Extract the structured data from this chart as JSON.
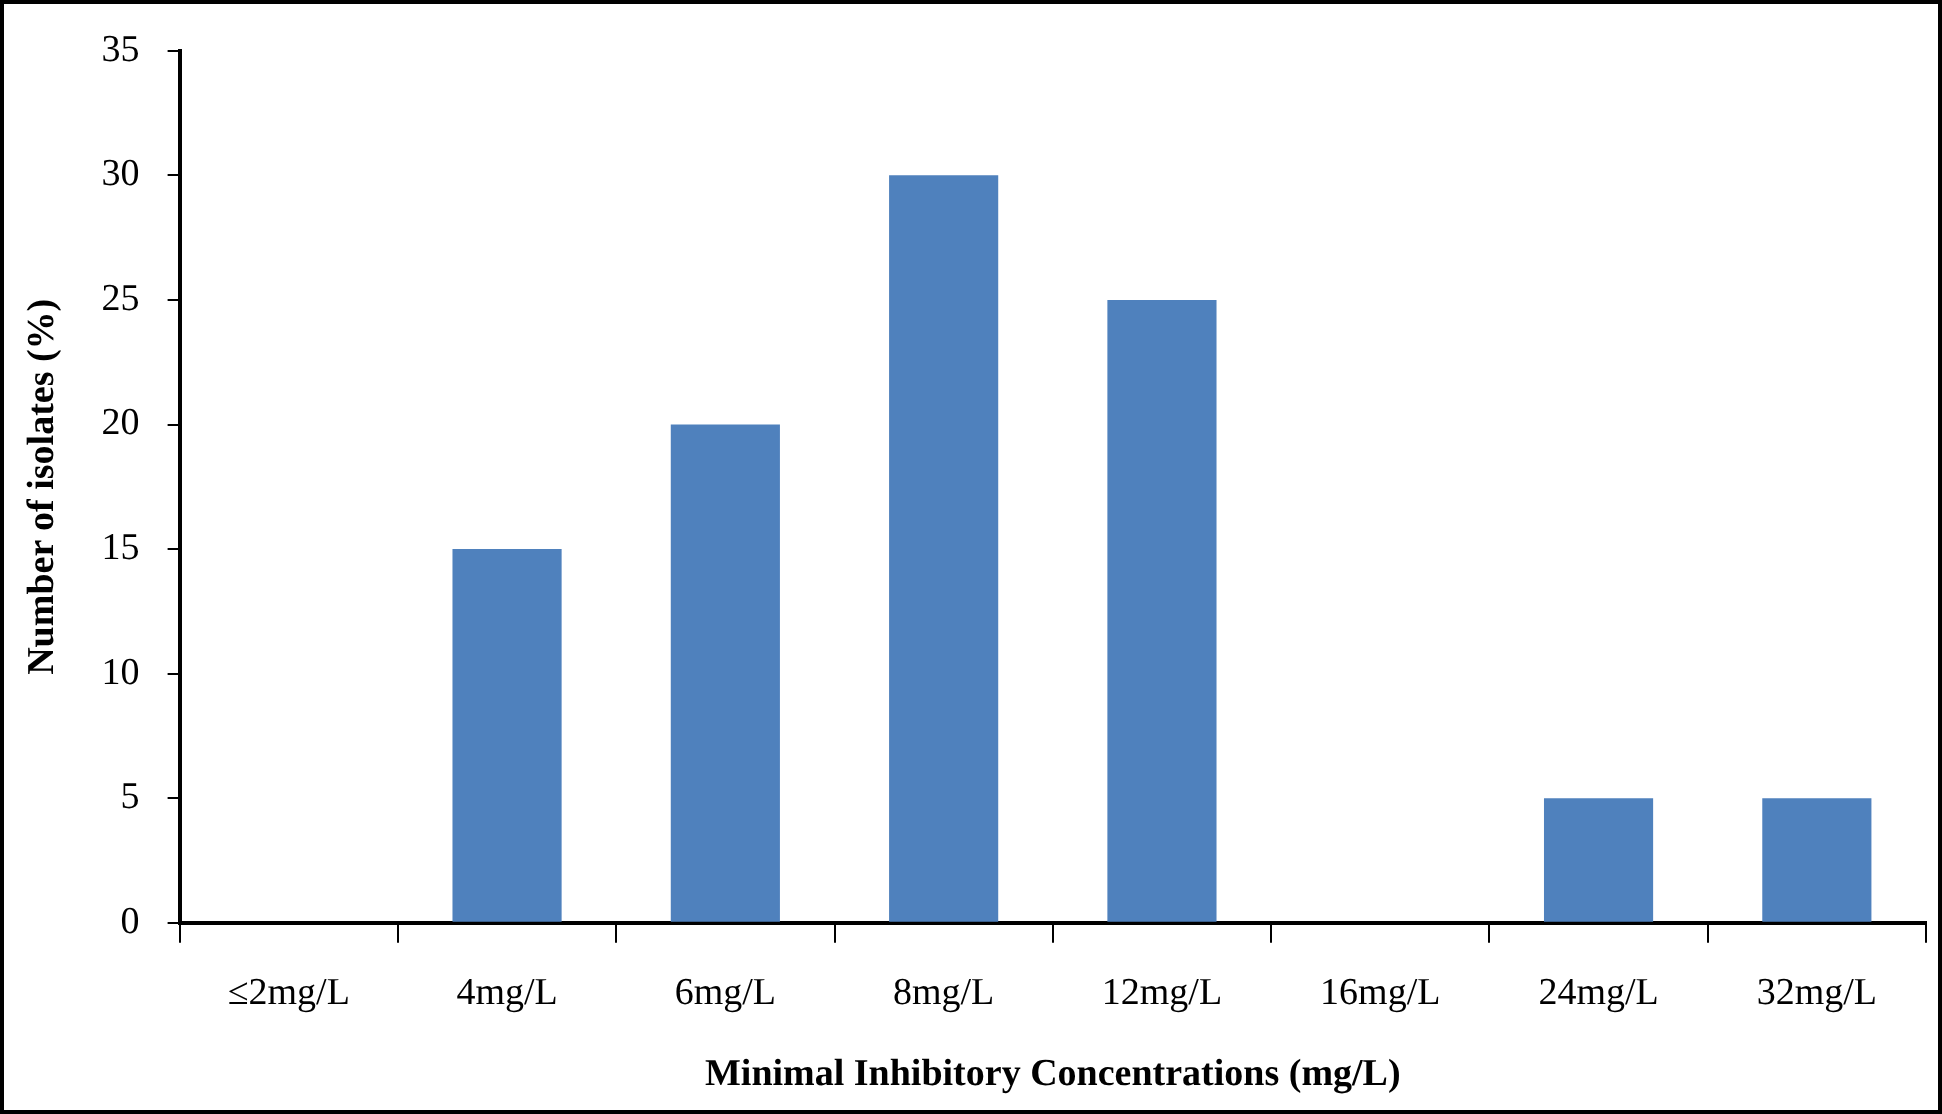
{
  "chart_data": {
    "type": "bar",
    "xlabel": "Minimal Inhibitory Concentrations (mg/L)",
    "ylabel": "Number of isolates (%)",
    "categories": [
      "≤2mg/L",
      "4mg/L",
      "6mg/L",
      "8mg/L",
      "12mg/L",
      "16mg/L",
      "24mg/L",
      "32mg/L"
    ],
    "values": [
      0,
      15,
      20,
      30,
      25,
      0,
      5,
      5
    ],
    "color": "#4f81bd",
    "ylim": [
      0,
      35
    ],
    "yticks": [
      0,
      5,
      10,
      15,
      20,
      25,
      30,
      35
    ],
    "grid": false,
    "legend": false
  }
}
